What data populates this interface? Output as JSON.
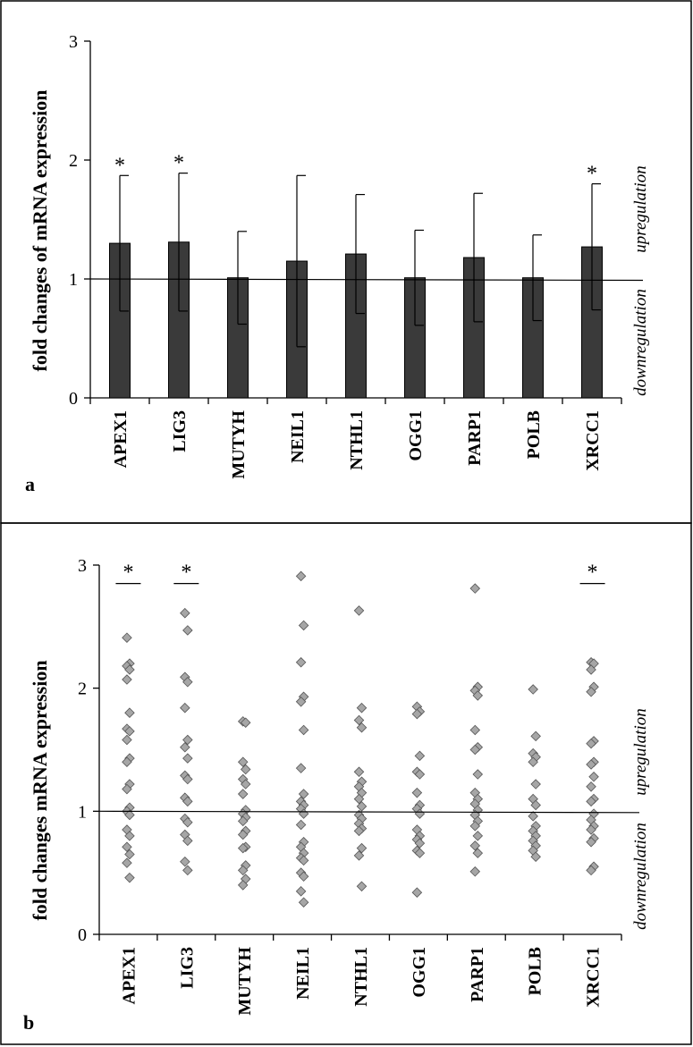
{
  "chart_data": [
    {
      "panel": "a",
      "type": "bar",
      "ylabel": "fold changes of mRNA expression",
      "ylim": [
        0,
        3
      ],
      "yticks": [
        "0",
        "1",
        "2",
        "3"
      ],
      "categories": [
        "APEX1",
        "LIG3",
        "MUTYH",
        "NEIL1",
        "NTHL1",
        "OGG1",
        "PARP1",
        "POLB",
        "XRCC1"
      ],
      "values": [
        1.3,
        1.31,
        1.01,
        1.15,
        1.21,
        1.01,
        1.18,
        1.01,
        1.27
      ],
      "error": [
        0.57,
        0.58,
        0.39,
        0.72,
        0.5,
        0.4,
        0.54,
        0.36,
        0.53
      ],
      "significance": [
        "*",
        "*",
        "",
        "",
        "",
        "",
        "",
        "",
        "*"
      ],
      "reference_line": 1,
      "annotations": {
        "up": "upregulation",
        "down": "downregulation"
      },
      "bar_color": "#3a3a3a"
    },
    {
      "panel": "b",
      "type": "scatter",
      "ylabel": "fold changes mRNA expression",
      "ylim": [
        0,
        3
      ],
      "yticks": [
        "0",
        "1",
        "2",
        "3"
      ],
      "categories": [
        "APEX1",
        "LIG3",
        "MUTYH",
        "NEIL1",
        "NTHL1",
        "OGG1",
        "PARP1",
        "POLB",
        "XRCC1"
      ],
      "points": [
        [
          2.41,
          2.2,
          2.18,
          2.15,
          2.07,
          1.8,
          1.67,
          1.65,
          1.58,
          1.43,
          1.4,
          1.22,
          1.18,
          1.03,
          1.0,
          0.97,
          0.85,
          0.8,
          0.71,
          0.65,
          0.58,
          0.46
        ],
        [
          2.61,
          2.47,
          2.09,
          2.05,
          1.84,
          1.58,
          1.52,
          1.43,
          1.29,
          1.26,
          1.11,
          1.08,
          0.94,
          0.91,
          0.81,
          0.76,
          0.59,
          0.52
        ],
        [
          1.73,
          1.72,
          1.4,
          1.34,
          1.26,
          1.22,
          1.14,
          1.01,
          0.98,
          0.95,
          0.92,
          0.84,
          0.81,
          0.71,
          0.7,
          0.56,
          0.52,
          0.45,
          0.4
        ],
        [
          2.91,
          2.51,
          2.21,
          1.93,
          1.89,
          1.66,
          1.35,
          1.14,
          1.08,
          1.05,
          1.02,
          0.98,
          0.89,
          0.75,
          0.71,
          0.66,
          0.62,
          0.6,
          0.5,
          0.47,
          0.35,
          0.26
        ],
        [
          2.63,
          1.84,
          1.74,
          1.68,
          1.32,
          1.24,
          1.2,
          1.15,
          1.1,
          1.04,
          0.97,
          0.94,
          0.9,
          0.86,
          0.84,
          0.7,
          0.64,
          0.39
        ],
        [
          1.85,
          1.81,
          1.79,
          1.45,
          1.32,
          1.3,
          1.15,
          1.05,
          1.02,
          0.98,
          0.85,
          0.8,
          0.77,
          0.74,
          0.68,
          0.66,
          0.34
        ],
        [
          2.81,
          2.01,
          1.98,
          1.94,
          1.66,
          1.52,
          1.5,
          1.3,
          1.15,
          1.1,
          1.06,
          1.01,
          0.97,
          0.92,
          0.88,
          0.8,
          0.72,
          0.66,
          0.51
        ],
        [
          1.99,
          1.61,
          1.47,
          1.44,
          1.4,
          1.22,
          1.1,
          1.05,
          0.96,
          0.88,
          0.84,
          0.8,
          0.76,
          0.72,
          0.68,
          0.63
        ],
        [
          2.21,
          2.2,
          2.15,
          2.01,
          1.97,
          1.57,
          1.55,
          1.4,
          1.38,
          1.28,
          1.2,
          1.1,
          1.08,
          0.98,
          0.93,
          0.88,
          0.85,
          0.78,
          0.75,
          0.55,
          0.52
        ]
      ],
      "significance": [
        "*",
        "*",
        "",
        "",
        "",
        "",
        "",
        "",
        "*"
      ],
      "reference_line": 1,
      "annotations": {
        "up": "upregulation",
        "down": "downregulation"
      },
      "marker_color": "#a6a6a6"
    }
  ]
}
